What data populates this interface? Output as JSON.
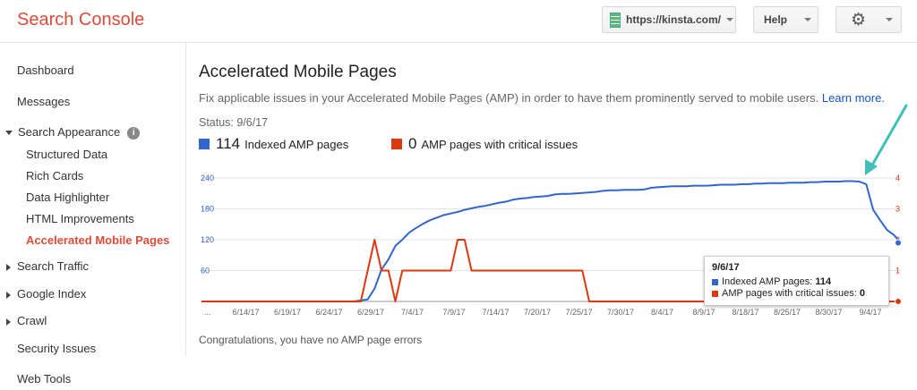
{
  "app": {
    "title": "Search Console"
  },
  "header": {
    "site": "https://kinsta.com/",
    "help": "Help",
    "settings_icon": "gear-icon"
  },
  "sidebar": {
    "items": [
      {
        "label": "Dashboard"
      },
      {
        "label": "Messages"
      },
      {
        "label": "Search Appearance"
      },
      {
        "label": "Structured Data"
      },
      {
        "label": "Rich Cards"
      },
      {
        "label": "Data Highlighter"
      },
      {
        "label": "HTML Improvements"
      },
      {
        "label": "Accelerated Mobile Pages"
      },
      {
        "label": "Search Traffic"
      },
      {
        "label": "Google Index"
      },
      {
        "label": "Crawl"
      },
      {
        "label": "Security Issues"
      },
      {
        "label": "Web Tools"
      }
    ]
  },
  "main": {
    "title": "Accelerated Mobile Pages",
    "description": "Fix applicable issues in your Accelerated Mobile Pages (AMP) in order to have them prominently served to mobile users.",
    "learn_more": "Learn more.",
    "status": "Status: 9/6/17",
    "legend": {
      "indexed_count": "114",
      "indexed_label": "Indexed AMP pages",
      "critical_count": "0",
      "critical_label": "AMP pages with critical issues"
    },
    "congrats": "Congratulations, you have no AMP page errors"
  },
  "colors": {
    "accent": "#dd4b39",
    "indexed": "#3366cc",
    "critical": "#dc3912",
    "arrow": "#3fbfb8",
    "link": "#1155cc"
  },
  "chart_data": {
    "type": "line",
    "x_ticks": [
      "...",
      "6/14/17",
      "6/19/17",
      "6/24/17",
      "6/29/17",
      "7/4/17",
      "7/9/17",
      "7/14/17",
      "7/20/17",
      "7/25/17",
      "7/30/17",
      "8/4/17",
      "8/9/17",
      "8/18/17",
      "8/25/17",
      "8/30/17",
      "9/4/17"
    ],
    "y_left_ticks": [
      "240",
      "180",
      "120",
      "60"
    ],
    "y_right_ticks": [
      "4",
      "3",
      "2",
      "1"
    ],
    "y_left_range": [
      0,
      240
    ],
    "y_right_range": [
      0,
      4
    ],
    "series": [
      {
        "name": "Indexed AMP pages",
        "axis": "left",
        "values": [
          0,
          0,
          0,
          0,
          0,
          0,
          0,
          0,
          0,
          0,
          0,
          0,
          0,
          0,
          0,
          0,
          0,
          0,
          0,
          0,
          0,
          0,
          0,
          2,
          4,
          25,
          62,
          82,
          108,
          120,
          134,
          143,
          151,
          158,
          163,
          168,
          171,
          174,
          178,
          181,
          184,
          186,
          189,
          192,
          194,
          198,
          200,
          201,
          203,
          204,
          205,
          208,
          209,
          209,
          210,
          211,
          212,
          213,
          215,
          216,
          216,
          217,
          217,
          217,
          218,
          221,
          222,
          223,
          224,
          224,
          224,
          225,
          225,
          225,
          226,
          227,
          227,
          227,
          228,
          228,
          229,
          229,
          230,
          230,
          230,
          231,
          231,
          231,
          232,
          232,
          233,
          233,
          233,
          234,
          234,
          233,
          228,
          178,
          158,
          139,
          129,
          114
        ]
      },
      {
        "name": "AMP pages with critical issues",
        "axis": "right",
        "values": [
          0,
          0,
          0,
          0,
          0,
          0,
          0,
          0,
          0,
          0,
          0,
          0,
          0,
          0,
          0,
          0,
          0,
          0,
          0,
          0,
          0,
          0,
          0,
          0,
          1,
          2,
          1,
          1,
          0,
          1,
          1,
          1,
          1,
          1,
          1,
          1,
          1,
          2,
          2,
          1,
          1,
          1,
          1,
          1,
          1,
          1,
          1,
          1,
          1,
          1,
          1,
          1,
          1,
          1,
          1,
          1,
          0,
          0,
          0,
          0,
          0,
          0,
          0,
          0,
          0,
          0,
          0,
          0,
          0,
          0,
          0,
          0,
          0,
          0,
          0,
          0,
          0,
          0,
          0,
          0,
          0,
          0,
          0,
          0,
          0,
          0,
          0,
          0,
          0,
          0,
          0,
          0,
          0,
          0,
          0,
          0,
          0,
          0,
          0,
          0,
          0,
          0
        ]
      }
    ],
    "tooltip": {
      "date": "9/6/17",
      "indexed_label": "Indexed AMP pages:",
      "indexed_value": "114",
      "critical_label": "AMP pages with critical issues:",
      "critical_value": "0"
    }
  }
}
